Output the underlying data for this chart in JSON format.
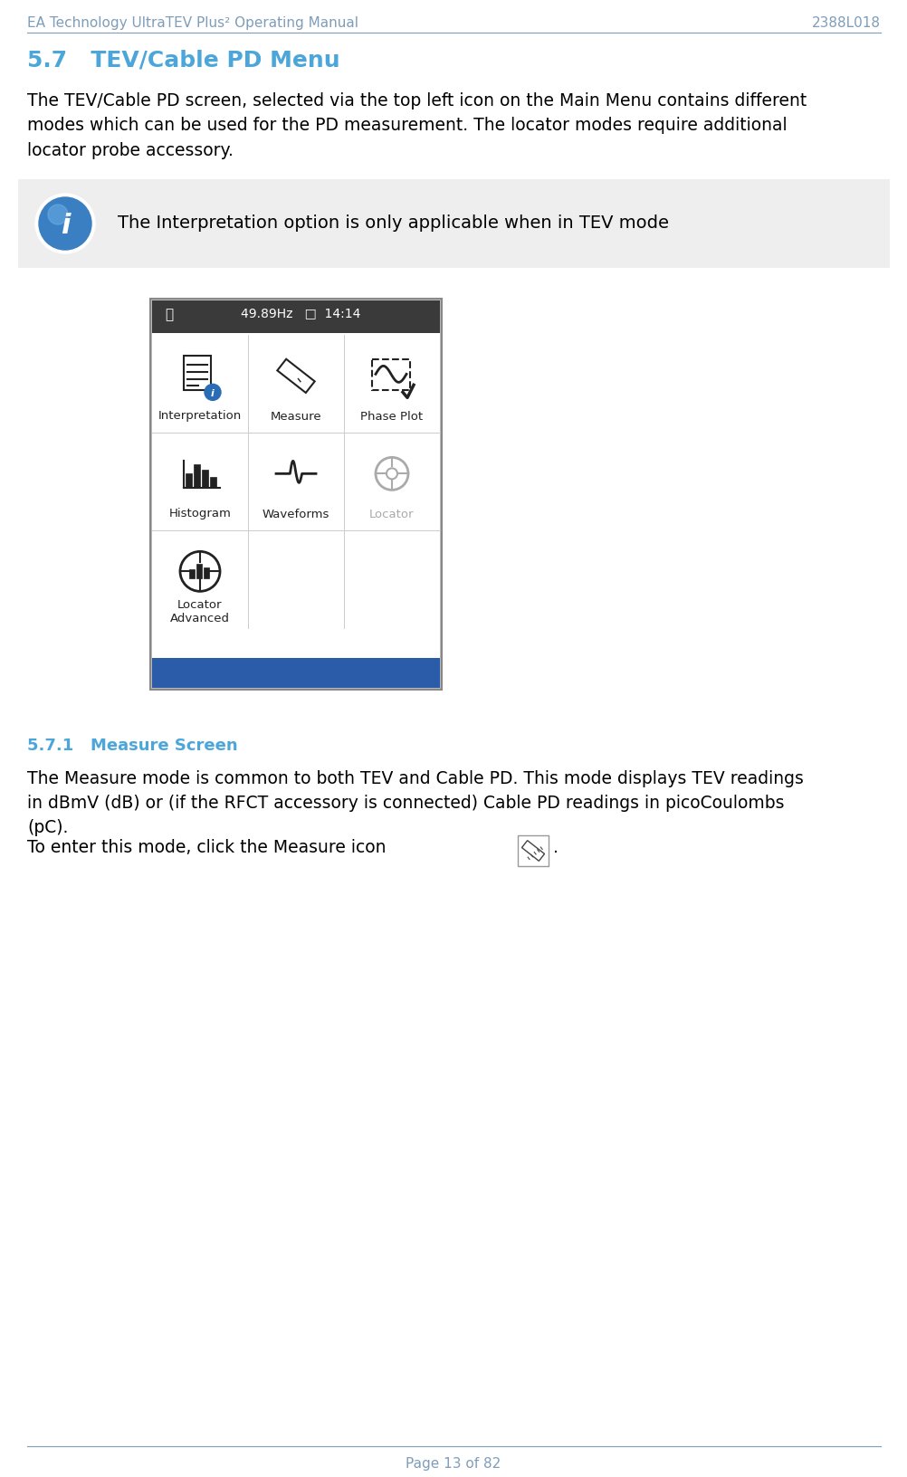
{
  "header_left": "EA Technology UltraTEV Plus² Operating Manual",
  "header_right": "2388L018",
  "header_color": "#7f9db9",
  "section_title": "5.7   TEV/Cable PD Menu",
  "section_title_color": "#4da6d9",
  "body_text1": "The TEV/Cable PD screen, selected via the top left icon on the Main Menu contains different\nmodes which can be used for the PD measurement. The locator modes require additional\nlocator probe accessory.",
  "note_bg": "#eeeeee",
  "note_text": "The Interpretation option is only applicable when in TEV mode",
  "screen_status_text": "49.89Hz   □  14:14",
  "screen_bg": "#ffffff",
  "screen_header_bg": "#3a3a3a",
  "screen_blue_bar": "#2a5caa",
  "screen_items": [
    {
      "label": "Interpretation",
      "col": 0,
      "row": 0
    },
    {
      "label": "Measure",
      "col": 1,
      "row": 0
    },
    {
      "label": "Phase Plot",
      "col": 2,
      "row": 0
    },
    {
      "label": "Histogram",
      "col": 0,
      "row": 1
    },
    {
      "label": "Waveforms",
      "col": 1,
      "row": 1
    },
    {
      "label": "Locator",
      "col": 2,
      "row": 1,
      "grayed": true
    },
    {
      "label": "Locator\nAdvanced",
      "col": 0,
      "row": 2
    }
  ],
  "subsection_num": "5.7.1",
  "subsection_title": "Measure Screen",
  "subsection_color": "#4da6d9",
  "body_text2": "The Measure mode is common to both TEV and Cable PD. This mode displays TEV readings\nin dBmV (dB) or (if the RFCT accessory is connected) Cable PD readings in picoCoulombs\n(pC).",
  "body_text3": "To enter this mode, click the Measure icon",
  "footer_text": "Page 13 of 82",
  "footer_color": "#7f9db9",
  "bg_color": "#ffffff",
  "text_color": "#000000",
  "body_font_size": 13.5,
  "header_font_size": 11
}
